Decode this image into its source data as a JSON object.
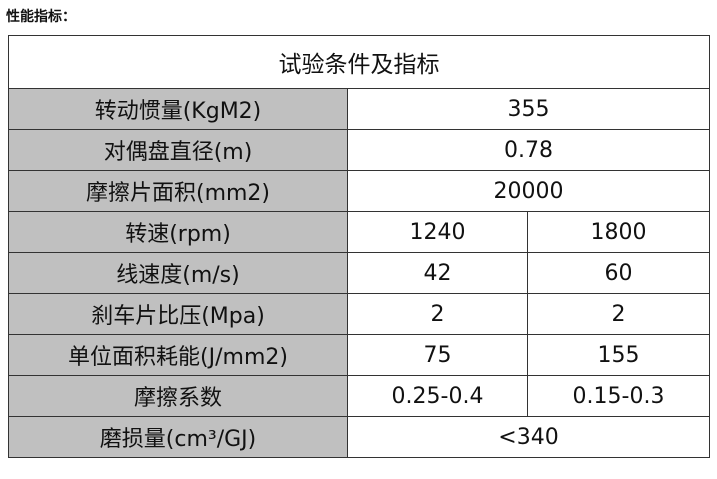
{
  "heading": "性能指标：",
  "table": {
    "title": "试验条件及指标",
    "rows": [
      {
        "label": "转动惯量(KgM2)",
        "values": [
          "355"
        ]
      },
      {
        "label": "对偶盘直径(m)",
        "values": [
          "0.78"
        ]
      },
      {
        "label": "摩擦片面积(mm2)",
        "values": [
          "20000"
        ]
      },
      {
        "label": "转速(rpm)",
        "values": [
          "1240",
          "1800"
        ]
      },
      {
        "label": "线速度(m/s)",
        "values": [
          "42",
          "60"
        ]
      },
      {
        "label": "刹车片比压(Mpa)",
        "values": [
          "2",
          "2"
        ]
      },
      {
        "label": "单位面积耗能(J/mm2)",
        "values": [
          "75",
          "155"
        ]
      },
      {
        "label": "摩擦系数",
        "values": [
          "0.25-0.4",
          "0.15-0.3"
        ]
      },
      {
        "label": "磨损量(cm³/GJ)",
        "values": [
          "<340"
        ]
      }
    ],
    "label_bg": "#c0c0c0"
  }
}
